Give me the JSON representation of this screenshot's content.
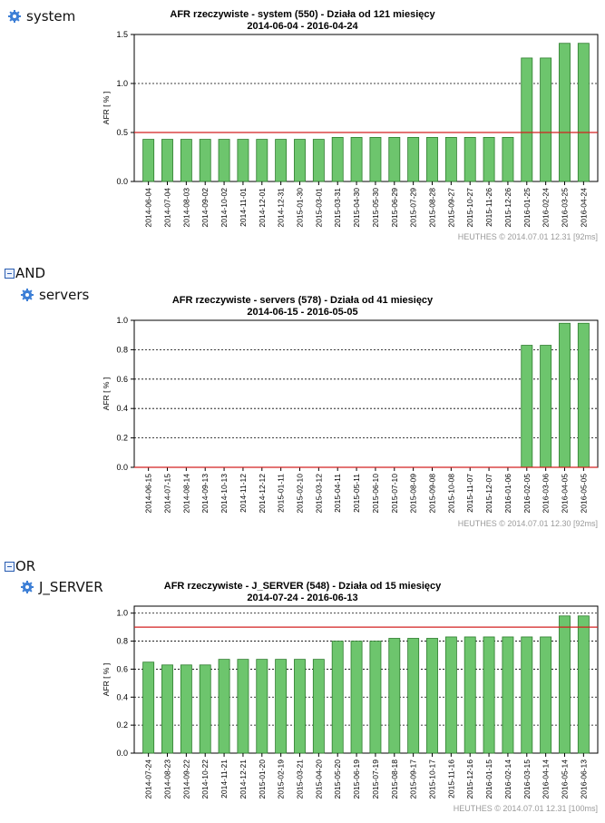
{
  "tree": {
    "system": "system",
    "and_label": "AND",
    "servers": "servers",
    "or_label": "OR",
    "j_server": "J_SERVER"
  },
  "chart_data": [
    {
      "type": "bar",
      "title": "AFR rzeczywiste - system (550) - Działa od 121 miesięcy",
      "subtitle": "2014-06-04 - 2016-04-24",
      "ylabel": "AFR  [ % ]",
      "ylim": [
        0,
        1.5
      ],
      "yticks": [
        "0.0",
        "0.5",
        "1.0",
        "1.5"
      ],
      "ytick_values": [
        0,
        0.5,
        1.0,
        1.5
      ],
      "threshold": 0.5,
      "bar_color": "#6dc56d",
      "threshold_color": "#d42020",
      "footer": "HEUTHES © 2014.07.01 12.31 [92ms]",
      "categories": [
        "2014-06-04",
        "2014-07-04",
        "2014-08-03",
        "2014-09-02",
        "2014-10-02",
        "2014-11-01",
        "2014-12-01",
        "2014-12-31",
        "2015-01-30",
        "2015-03-01",
        "2015-03-31",
        "2015-04-30",
        "2015-05-30",
        "2015-06-29",
        "2015-07-29",
        "2015-08-28",
        "2015-09-27",
        "2015-10-27",
        "2015-11-26",
        "2015-12-26",
        "2016-01-25",
        "2016-02-24",
        "2016-03-25",
        "2016-04-24"
      ],
      "values": [
        0.43,
        0.43,
        0.43,
        0.43,
        0.43,
        0.43,
        0.43,
        0.43,
        0.43,
        0.43,
        0.45,
        0.45,
        0.45,
        0.45,
        0.45,
        0.45,
        0.45,
        0.45,
        0.45,
        0.45,
        1.26,
        1.26,
        1.41,
        1.41
      ]
    },
    {
      "type": "bar",
      "title": "AFR rzeczywiste - servers (578)  - Działa od 41 miesięcy",
      "subtitle": "2014-06-15 - 2016-05-05",
      "ylabel": "AFR  [ % ]",
      "ylim": [
        0,
        1.0
      ],
      "yticks": [
        "0.0",
        "0.2",
        "0.4",
        "0.6",
        "0.8",
        "1.0"
      ],
      "ytick_values": [
        0,
        0.2,
        0.4,
        0.6,
        0.8,
        1.0
      ],
      "threshold": 0.0,
      "bar_color": "#6dc56d",
      "threshold_color": "#d42020",
      "footer": "HEUTHES © 2014.07.01 12.30 [92ms]",
      "categories": [
        "2014-06-15",
        "2014-07-15",
        "2014-08-14",
        "2014-09-13",
        "2014-10-13",
        "2014-11-12",
        "2014-12-12",
        "2015-01-11",
        "2015-02-10",
        "2015-03-12",
        "2015-04-11",
        "2015-05-11",
        "2015-06-10",
        "2015-07-10",
        "2015-08-09",
        "2015-09-08",
        "2015-10-08",
        "2015-11-07",
        "2015-12-07",
        "2016-01-06",
        "2016-02-05",
        "2016-03-06",
        "2016-04-05",
        "2016-05-05"
      ],
      "values": [
        0,
        0,
        0,
        0,
        0,
        0,
        0,
        0,
        0,
        0,
        0,
        0,
        0,
        0,
        0,
        0,
        0,
        0,
        0,
        0,
        0.83,
        0.83,
        0.98,
        0.98
      ]
    },
    {
      "type": "bar",
      "title": "AFR rzeczywiste - J_SERVER (548)  - Działa od 15 miesięcy",
      "subtitle": "2014-07-24 - 2016-06-13",
      "ylabel": "AFR  [ % ]",
      "ylim": [
        0,
        1.05
      ],
      "yticks": [
        "0.0",
        "0.2",
        "0.4",
        "0.6",
        "0.8",
        "1.0"
      ],
      "ytick_values": [
        0,
        0.2,
        0.4,
        0.6,
        0.8,
        1.0
      ],
      "threshold": 0.9,
      "bar_color": "#6dc56d",
      "threshold_color": "#d42020",
      "footer": "HEUTHES © 2014.07.01 12.31 [100ms]",
      "categories": [
        "2014-07-24",
        "2014-08-23",
        "2014-09-22",
        "2014-10-22",
        "2014-11-21",
        "2014-12-21",
        "2015-01-20",
        "2015-02-19",
        "2015-03-21",
        "2015-04-20",
        "2015-05-20",
        "2015-06-19",
        "2015-07-19",
        "2015-08-18",
        "2015-09-17",
        "2015-10-17",
        "2015-11-16",
        "2015-12-16",
        "2016-01-15",
        "2016-02-14",
        "2016-03-15",
        "2016-04-14",
        "2016-05-14",
        "2016-06-13"
      ],
      "values": [
        0.65,
        0.63,
        0.63,
        0.63,
        0.67,
        0.67,
        0.67,
        0.67,
        0.67,
        0.67,
        0.8,
        0.8,
        0.8,
        0.82,
        0.82,
        0.82,
        0.83,
        0.83,
        0.83,
        0.83,
        0.83,
        0.83,
        0.98,
        0.98
      ]
    }
  ]
}
